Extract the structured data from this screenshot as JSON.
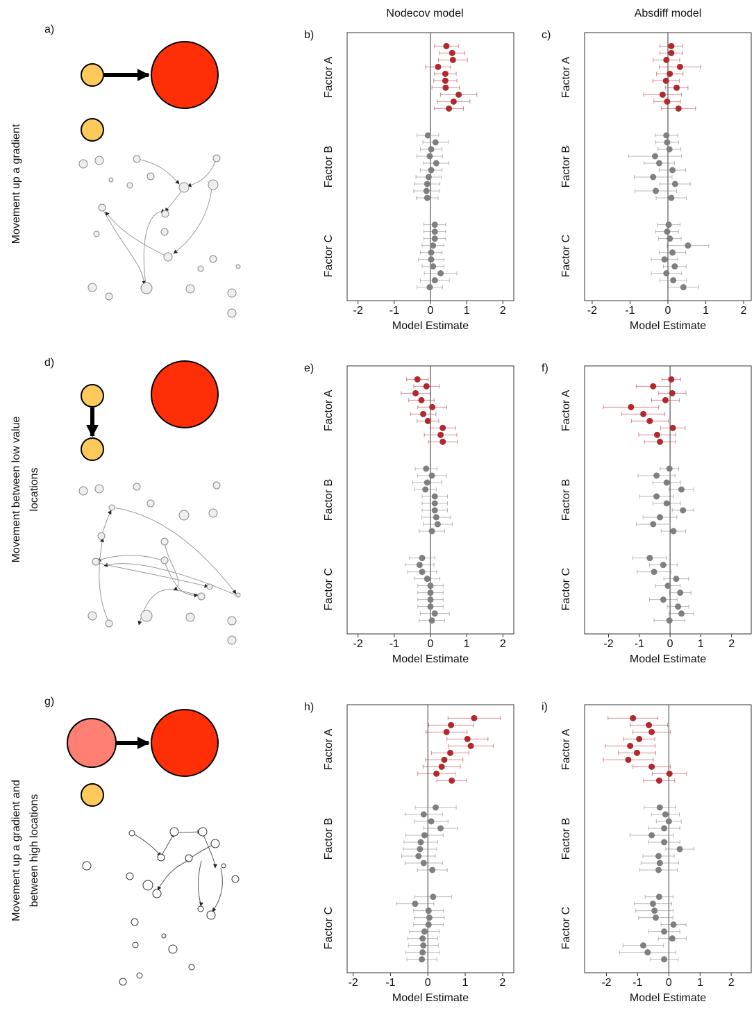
{
  "column_titles": [
    "Nodecov model",
    "Absdiff model"
  ],
  "diagrams": [
    {
      "label": "a)",
      "caption": [
        "Movement up a gradient"
      ]
    },
    {
      "label": "d)",
      "caption": [
        "Movement between low value",
        "locations"
      ]
    },
    {
      "label": "g)",
      "caption": [
        "Movement up a gradient and",
        "between high locations"
      ]
    }
  ],
  "chart_data": [
    {
      "type": "forest",
      "panel_label": "b)",
      "xlabel": "Model Estimate",
      "xlim": [
        -2.3,
        2.3
      ],
      "xticks": [
        -2,
        -1,
        0,
        1,
        2
      ],
      "reference_line": 0,
      "groups": [
        {
          "name": "Factor A",
          "color": "#b3282d",
          "values": [
            0.44,
            0.6,
            0.62,
            0.21,
            0.41,
            0.41,
            0.42,
            0.78,
            0.64,
            0.51
          ],
          "errors": [
            0.33,
            0.35,
            0.4,
            0.35,
            0.3,
            0.32,
            0.38,
            0.5,
            0.45,
            0.4
          ]
        },
        {
          "name": "Factor B",
          "color": "#7f7f7f",
          "values": [
            -0.07,
            0.14,
            0.02,
            -0.02,
            0.16,
            0.02,
            -0.05,
            -0.09,
            -0.11,
            -0.09
          ],
          "errors": [
            0.3,
            0.35,
            0.3,
            0.35,
            0.35,
            0.3,
            0.35,
            0.35,
            0.35,
            0.3
          ]
        },
        {
          "name": "Factor C",
          "color": "#7f7f7f",
          "values": [
            0.12,
            0.12,
            0.12,
            0.07,
            0.02,
            0.02,
            0.07,
            0.28,
            0.12,
            -0.02
          ],
          "errors": [
            0.3,
            0.3,
            0.3,
            0.3,
            0.3,
            0.35,
            0.3,
            0.45,
            0.4,
            0.35
          ]
        }
      ]
    },
    {
      "type": "forest",
      "panel_label": "c)",
      "xlabel": "Model Estimate",
      "xlim": [
        -2.2,
        2.2
      ],
      "xticks": [
        -2,
        -1,
        0,
        1,
        2
      ],
      "reference_line": 0,
      "groups": [
        {
          "name": "Factor A",
          "color": "#b3282d",
          "values": [
            0.09,
            0.09,
            -0.04,
            0.32,
            0.05,
            -0.05,
            0.23,
            -0.14,
            -0.02,
            0.28
          ],
          "errors": [
            0.3,
            0.3,
            0.35,
            0.55,
            0.35,
            0.35,
            0.3,
            0.5,
            0.35,
            0.45
          ]
        },
        {
          "name": "Factor B",
          "color": "#7f7f7f",
          "values": [
            -0.04,
            -0.02,
            0.04,
            -0.34,
            -0.23,
            0.12,
            -0.39,
            0.19,
            -0.32,
            0.09
          ],
          "errors": [
            0.3,
            0.3,
            0.3,
            0.7,
            0.4,
            0.35,
            0.5,
            0.4,
            0.55,
            0.4
          ]
        },
        {
          "name": "Factor C",
          "color": "#7f7f7f",
          "values": [
            0.02,
            -0.02,
            0.05,
            0.53,
            0.12,
            -0.09,
            0.18,
            -0.04,
            0.14,
            0.41
          ],
          "errors": [
            0.3,
            0.3,
            0.3,
            0.55,
            0.35,
            0.35,
            0.3,
            0.4,
            0.35,
            0.4
          ]
        }
      ]
    },
    {
      "type": "forest",
      "panel_label": "e)",
      "xlabel": "Model Estimate",
      "xlim": [
        -2.3,
        2.3
      ],
      "xticks": [
        -2,
        -1,
        0,
        1,
        2
      ],
      "reference_line": 0,
      "groups": [
        {
          "name": "Factor A",
          "color": "#b3282d",
          "values": [
            -0.36,
            -0.11,
            -0.41,
            -0.25,
            0.05,
            -0.2,
            -0.07,
            0.34,
            0.28,
            0.34
          ],
          "errors": [
            0.3,
            0.35,
            0.4,
            0.35,
            0.4,
            0.35,
            0.3,
            0.35,
            0.45,
            0.4
          ]
        },
        {
          "name": "Factor B",
          "color": "#7f7f7f",
          "values": [
            -0.12,
            0.04,
            -0.09,
            -0.14,
            0.12,
            0.12,
            0.12,
            0.16,
            0.2,
            0.04
          ],
          "errors": [
            0.3,
            0.4,
            0.4,
            0.3,
            0.35,
            0.35,
            0.35,
            0.4,
            0.4,
            0.35
          ]
        },
        {
          "name": "Factor C",
          "color": "#7f7f7f",
          "values": [
            -0.23,
            -0.3,
            -0.23,
            -0.09,
            0,
            0,
            0,
            0,
            0.12,
            0.04
          ],
          "errors": [
            0.35,
            0.4,
            0.4,
            0.35,
            0.35,
            0.35,
            0.35,
            0.35,
            0.4,
            0.35
          ]
        }
      ]
    },
    {
      "type": "forest",
      "panel_label": "f)",
      "xlabel": "Model Estimate",
      "xlim": [
        -2.78,
        2.64
      ],
      "xticks": [
        -2,
        -1,
        0,
        1,
        2
      ],
      "reference_line": 0,
      "groups": [
        {
          "name": "Factor A",
          "color": "#b3282d",
          "values": [
            0.04,
            -0.55,
            0.07,
            -0.15,
            -1.27,
            -0.87,
            -0.66,
            0.09,
            -0.42,
            -0.33
          ],
          "errors": [
            0.3,
            0.55,
            0.45,
            0.45,
            0.9,
            0.7,
            0.6,
            0.4,
            0.6,
            0.5
          ]
        },
        {
          "name": "Factor B",
          "color": "#7f7f7f",
          "values": [
            -0.02,
            -0.44,
            -0.11,
            0.37,
            -0.44,
            -0.11,
            0.42,
            -0.33,
            -0.55,
            0.11
          ],
          "errors": [
            0.3,
            0.6,
            0.45,
            0.4,
            0.55,
            0.45,
            0.35,
            0.55,
            0.55,
            0.4
          ]
        },
        {
          "name": "Factor C",
          "color": "#7f7f7f",
          "values": [
            -0.66,
            -0.22,
            -0.52,
            0.2,
            -0.07,
            0.33,
            -0.22,
            0.26,
            0.37,
            -0.02
          ],
          "errors": [
            0.55,
            0.45,
            0.55,
            0.4,
            0.4,
            0.35,
            0.45,
            0.35,
            0.4,
            0.5
          ]
        }
      ]
    },
    {
      "type": "forest",
      "panel_label": "h)",
      "xlabel": "Model Estimate",
      "xlim": [
        -2.16,
        2.3
      ],
      "xticks": [
        -2,
        -1,
        0,
        1,
        2
      ],
      "reference_line": 0,
      "groups": [
        {
          "name": "Factor A",
          "color": "#b3282d",
          "values": [
            1.24,
            0.62,
            0.5,
            1.06,
            1.15,
            0.6,
            0.44,
            0.37,
            0.23,
            0.64
          ],
          "errors": [
            0.7,
            0.6,
            0.55,
            0.55,
            0.6,
            0.5,
            0.5,
            0.5,
            0.5,
            0.4
          ]
        },
        {
          "name": "Factor B",
          "color": "#7f7f7f",
          "values": [
            0.21,
            -0.11,
            0.09,
            0.34,
            -0.09,
            -0.19,
            -0.21,
            -0.25,
            -0.11,
            0.12
          ],
          "errors": [
            0.55,
            0.5,
            0.45,
            0.45,
            0.5,
            0.45,
            0.45,
            0.45,
            0.5,
            0.4
          ]
        },
        {
          "name": "Factor C",
          "color": "#7f7f7f",
          "values": [
            0.14,
            -0.34,
            0.02,
            0.04,
            0.02,
            -0.09,
            -0.14,
            -0.12,
            -0.14,
            -0.16
          ],
          "errors": [
            0.5,
            0.5,
            0.4,
            0.4,
            0.4,
            0.4,
            0.4,
            0.4,
            0.45,
            0.4
          ]
        }
      ]
    },
    {
      "type": "forest",
      "panel_label": "i)",
      "xlabel": "Model Estimate",
      "xlim": [
        -2.7,
        2.64
      ],
      "xticks": [
        -2,
        -1,
        0,
        1,
        2
      ],
      "reference_line": 0,
      "groups": [
        {
          "name": "Factor A",
          "color": "#b3282d",
          "values": [
            -1.15,
            -0.64,
            -0.55,
            -0.95,
            -1.24,
            -1.02,
            -1.3,
            -0.55,
            0.02,
            -0.31
          ],
          "errors": [
            0.8,
            0.6,
            0.6,
            0.5,
            0.8,
            0.6,
            0.8,
            0.6,
            0.55,
            0.5
          ]
        },
        {
          "name": "Factor B",
          "color": "#7f7f7f",
          "values": [
            -0.29,
            -0.11,
            0,
            -0.15,
            -0.55,
            -0.15,
            0.35,
            -0.33,
            -0.29,
            -0.33
          ],
          "errors": [
            0.5,
            0.45,
            0.4,
            0.5,
            0.7,
            0.5,
            0.45,
            0.5,
            0.6,
            0.6
          ]
        },
        {
          "name": "Factor C",
          "color": "#7f7f7f",
          "values": [
            -0.31,
            -0.51,
            -0.46,
            -0.42,
            0.15,
            -0.15,
            0.11,
            -0.82,
            -0.68,
            -0.15
          ],
          "errors": [
            0.45,
            0.6,
            0.6,
            0.55,
            0.4,
            0.5,
            0.45,
            0.65,
            0.9,
            0.45
          ]
        }
      ]
    }
  ]
}
